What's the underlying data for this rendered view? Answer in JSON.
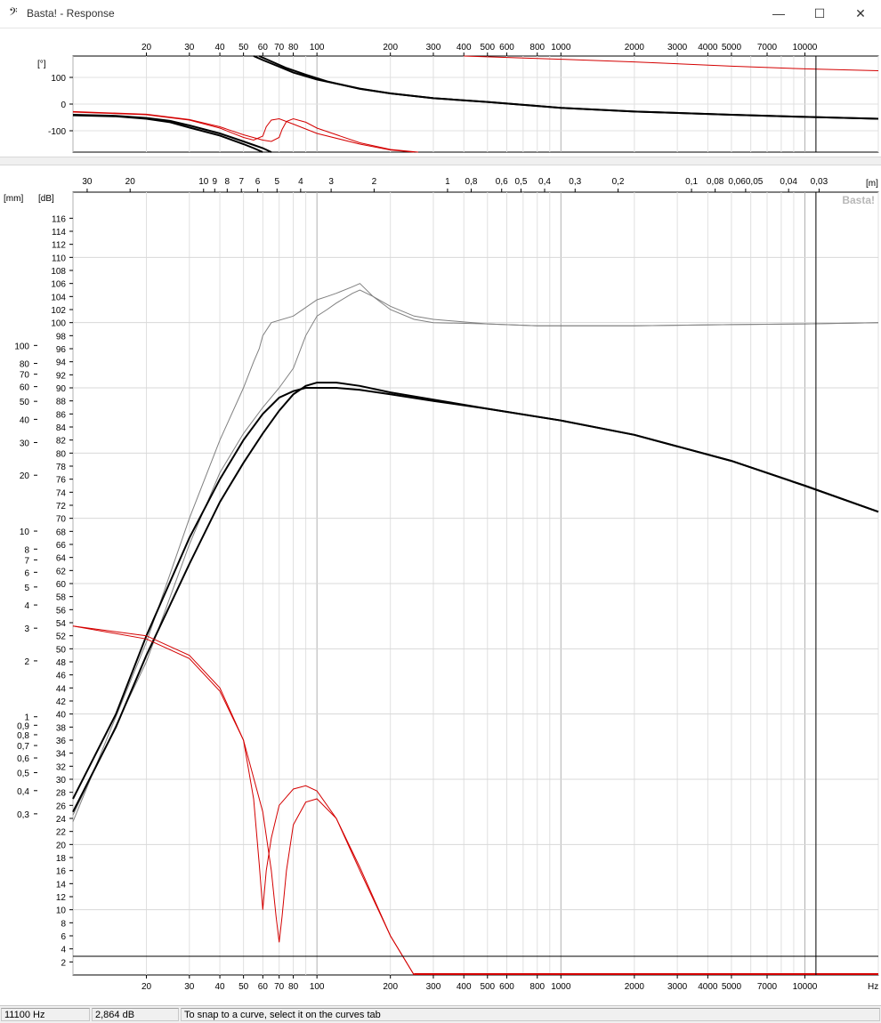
{
  "window": {
    "app_icon": "𝄢",
    "title": "Basta! - Response",
    "minimize_glyph": "—",
    "maximize_glyph": "☐",
    "close_glyph": "✕"
  },
  "phase_panel": {
    "ylabel": "[°]",
    "yticks": [
      100,
      0,
      -100
    ],
    "ylim": [
      -180,
      180
    ]
  },
  "main_panel": {
    "left_axis_label": "[mm]",
    "db_axis_label": "[dB]",
    "wavelength_unit": "[m]",
    "freq_unit": "Hz",
    "watermark": "Basta!",
    "db_ticks": [
      "116",
      "114",
      "112",
      "110",
      "108",
      "106",
      "104",
      "102",
      "100",
      "98",
      "96",
      "94",
      "92",
      "90",
      "88",
      "86",
      "84",
      "82",
      "80",
      "78",
      "76",
      "74",
      "72",
      "70",
      "68",
      "66",
      "64",
      "62",
      "60",
      "58",
      "56",
      "54",
      "52",
      "50",
      "48",
      "46",
      "44",
      "42",
      "40",
      "38",
      "36",
      "34",
      "32",
      "30",
      "28",
      "26",
      "24",
      "22",
      "20",
      "18",
      "16",
      "14",
      "12",
      "10",
      "8",
      "6",
      "4",
      "2"
    ],
    "mm_ticks": [
      "100",
      "80",
      "70",
      "60",
      "50",
      "40",
      "30",
      "20",
      "10",
      "8",
      "7",
      "6",
      "5",
      "4",
      "3",
      "2",
      "1",
      "0,9",
      "0,8",
      "0,7",
      "0,6",
      "0,5",
      "0,4",
      "0,3"
    ],
    "wavelength_ticks": [
      "30",
      "20",
      "10",
      "9",
      "8",
      "7",
      "6",
      "5",
      "4",
      "3",
      "2",
      "1",
      "0,8",
      "0,6",
      "0,5",
      "0,4",
      "0,3",
      "0,2",
      "0,1",
      "0,08",
      "0,060,05",
      "0,04",
      "0,03"
    ]
  },
  "freq_axis": {
    "labels": [
      "20",
      "30",
      "40",
      "50",
      "60",
      "70",
      "80",
      "100",
      "200",
      "300",
      "400",
      "500",
      "600",
      "800",
      "1000",
      "2000",
      "3000",
      "4000",
      "5000",
      "7000",
      "10000"
    ],
    "xlim": [
      10,
      20000
    ],
    "cursor_hz": 11100
  },
  "chart_data": [
    {
      "type": "line",
      "title": "",
      "ylabel": "[°]",
      "xscale": "log",
      "xlim": [
        10,
        20000
      ],
      "ylim": [
        -180,
        180
      ],
      "series": [
        {
          "color": "#000000",
          "x": [
            55,
            60,
            70,
            80,
            100,
            150,
            200,
            300,
            500,
            1000,
            2000,
            5000,
            10000,
            20000
          ],
          "y": [
            180,
            165,
            140,
            118,
            92,
            58,
            40,
            22,
            8,
            -14,
            -28,
            -40,
            -48,
            -55
          ]
        },
        {
          "color": "#000000",
          "x": [
            58,
            65,
            75,
            90,
            110,
            150,
            200,
            300,
            500,
            1000,
            2000,
            5000,
            10000,
            20000
          ],
          "y": [
            180,
            160,
            135,
            110,
            85,
            57,
            40,
            22,
            8,
            -14,
            -28,
            -40,
            -48,
            -55
          ]
        },
        {
          "color": "#000000",
          "x": [
            10,
            15,
            20,
            25,
            30,
            40,
            50,
            55,
            60
          ],
          "y": [
            -42,
            -46,
            -55,
            -68,
            -88,
            -118,
            -150,
            -165,
            -180
          ]
        },
        {
          "color": "#000000",
          "x": [
            10,
            15,
            20,
            25,
            30,
            40,
            50,
            60,
            65
          ],
          "y": [
            -40,
            -44,
            -52,
            -63,
            -80,
            -110,
            -140,
            -165,
            -180
          ]
        },
        {
          "color": "#d40000",
          "x": [
            10,
            20,
            30,
            40,
            50,
            55,
            60,
            62,
            65,
            70,
            80,
            100,
            150,
            200,
            250
          ],
          "y": [
            -30,
            -40,
            -60,
            -90,
            -125,
            -135,
            -120,
            -85,
            -60,
            -55,
            -75,
            -110,
            -150,
            -172,
            -180
          ]
        },
        {
          "color": "#d40000",
          "x": [
            10,
            20,
            30,
            40,
            50,
            60,
            65,
            70,
            72,
            75,
            80,
            90,
            100,
            150,
            200,
            260
          ],
          "y": [
            -28,
            -38,
            -58,
            -85,
            -115,
            -135,
            -140,
            -125,
            -95,
            -65,
            -55,
            -68,
            -90,
            -145,
            -170,
            -180
          ]
        },
        {
          "color": "#d40000",
          "x": [
            400,
            1000,
            2000,
            5000,
            10000,
            20000
          ],
          "y": [
            180,
            168,
            158,
            142,
            132,
            125
          ]
        }
      ]
    },
    {
      "type": "line",
      "title": "",
      "ylabel": "[dB]",
      "xlabel": "Hz",
      "xscale": "log",
      "xlim": [
        10,
        20000
      ],
      "ylim": [
        0,
        120
      ],
      "series": [
        {
          "color": "#808080",
          "x": [
            10,
            20,
            30,
            40,
            50,
            55,
            58,
            60,
            65,
            80,
            100,
            110,
            120,
            140,
            150,
            170,
            200,
            250,
            300,
            500,
            800,
            1000,
            2000,
            5000,
            10000,
            20000
          ],
          "y": [
            23.5,
            51,
            70,
            82,
            90,
            94,
            96,
            98,
            100,
            101,
            103.5,
            104,
            104.5,
            105.5,
            106,
            104,
            102.5,
            101,
            100.5,
            99.8,
            99.5,
            99.5,
            99.5,
            99.7,
            99.8,
            100
          ]
        },
        {
          "color": "#808080",
          "x": [
            10,
            20,
            30,
            40,
            50,
            60,
            70,
            80,
            90,
            100,
            110,
            120,
            140,
            150,
            170,
            200,
            250,
            300,
            500,
            800,
            1000,
            2000,
            5000,
            10000,
            20000
          ],
          "y": [
            24.5,
            48,
            66,
            77,
            83,
            87,
            90,
            93,
            98,
            101,
            102,
            103,
            104.5,
            105,
            104,
            102,
            100.5,
            100,
            99.8,
            99.5,
            99.5,
            99.5,
            99.7,
            99.8,
            100
          ]
        },
        {
          "color": "#000000",
          "x": [
            10,
            15,
            20,
            30,
            40,
            50,
            60,
            70,
            80,
            90,
            100,
            120,
            150,
            200,
            300,
            500,
            1000,
            2000,
            5000,
            10000,
            20000
          ],
          "y": [
            27,
            40,
            52,
            67,
            76,
            82,
            86,
            88.5,
            89.5,
            90,
            90,
            90,
            89.7,
            89,
            88,
            86.8,
            85,
            82.8,
            78.8,
            75,
            71
          ]
        },
        {
          "color": "#000000",
          "x": [
            10,
            15,
            20,
            30,
            40,
            50,
            60,
            70,
            80,
            90,
            100,
            120,
            150,
            200,
            300,
            500,
            1000,
            2000,
            5000,
            10000,
            20000
          ],
          "y": [
            25,
            38,
            49,
            63,
            72.5,
            78.5,
            83,
            86.5,
            89,
            90.3,
            90.8,
            90.8,
            90.3,
            89.3,
            88.2,
            86.8,
            85,
            82.8,
            78.8,
            75,
            71
          ]
        },
        {
          "color": "#d40000",
          "x": [
            10,
            20,
            30,
            40,
            50,
            55,
            58,
            60,
            62,
            65,
            70,
            80,
            90,
            100,
            120,
            150,
            200,
            250
          ],
          "y": [
            53.5,
            52,
            49,
            44,
            36,
            27,
            17,
            10,
            16,
            21,
            26,
            28.5,
            29,
            28.2,
            24,
            16,
            6,
            0
          ]
        },
        {
          "color": "#d40000",
          "x": [
            10,
            20,
            30,
            40,
            50,
            60,
            65,
            68,
            70,
            72,
            75,
            80,
            90,
            100,
            120,
            150,
            200,
            250
          ],
          "y": [
            53.5,
            51.5,
            48.5,
            43.5,
            36,
            25,
            16,
            9,
            5,
            9,
            16,
            23,
            26.5,
            27,
            24,
            16.5,
            6,
            0
          ]
        }
      ]
    }
  ],
  "statusbar": {
    "frequency": "11100 Hz",
    "level": "2,864 dB",
    "hint": "To snap to a curve, select it on the curves tab"
  }
}
